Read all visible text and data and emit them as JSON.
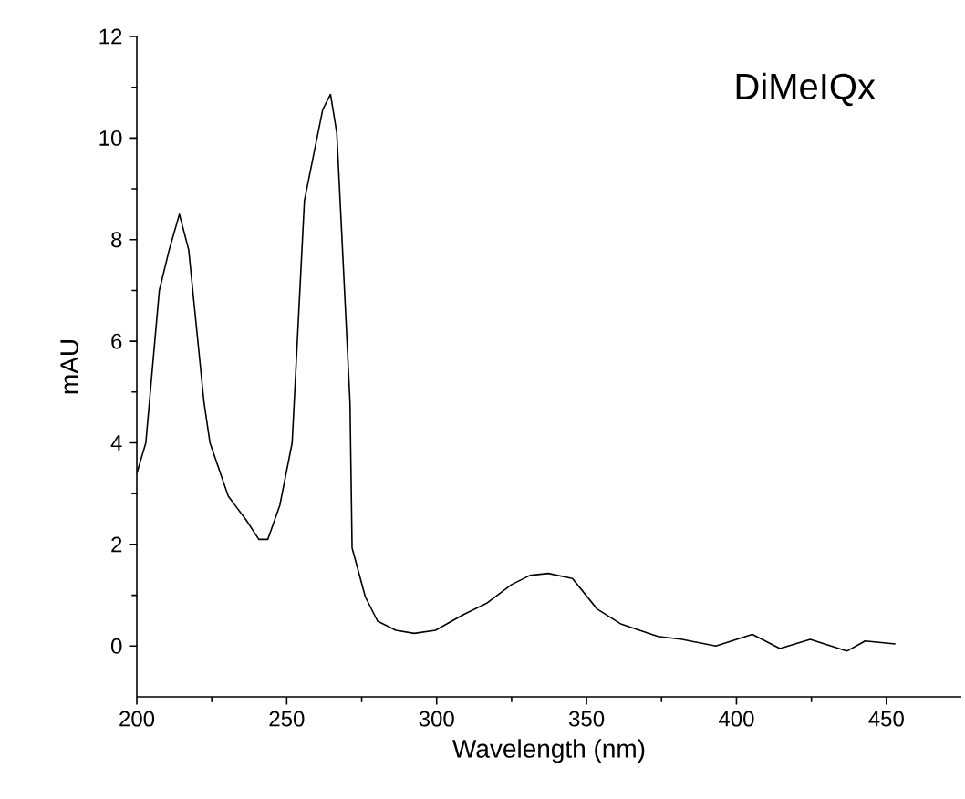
{
  "chart_data": {
    "type": "line",
    "xlabel": "Wavelength (nm)",
    "ylabel": "mAU",
    "annotations": [
      "DiMeIQx"
    ],
    "xlim": [
      200,
      475
    ],
    "xticks": [
      200,
      250,
      300,
      350,
      400,
      450
    ],
    "ylim": [
      -1,
      12
    ],
    "yticks": [
      0,
      2,
      4,
      6,
      8,
      10,
      12
    ],
    "grid": false,
    "marker": "none",
    "line_style": "solid",
    "series": [
      {
        "color": "#000000",
        "x": [
          200,
          203,
          207.5,
          210.8,
          214.2,
          217.3,
          222.4,
          224.4,
          230.5,
          236.6,
          240.7,
          243.7,
          247.7,
          251.8,
          255.9,
          262,
          264.6,
          266.7,
          271.1,
          271.8,
          276.2,
          280.3,
          286.4,
          292.5,
          299.6,
          308.7,
          316.9,
          325,
          331.1,
          337.2,
          345.3,
          353.5,
          361.6,
          373.8,
          381.9,
          393.1,
          405.3,
          414.5,
          424.6,
          436.8,
          442.9,
          453
        ],
        "values": [
          3.4,
          4.0,
          7.0,
          7.8,
          8.5,
          7.8,
          4.8,
          4.0,
          2.95,
          2.47,
          2.1,
          2.1,
          2.77,
          4.0,
          8.77,
          10.56,
          10.86,
          10.1,
          4.8,
          1.93,
          0.97,
          0.49,
          0.31,
          0.25,
          0.31,
          0.61,
          0.85,
          1.21,
          1.39,
          1.43,
          1.33,
          0.73,
          0.43,
          0.19,
          0.13,
          0.0,
          0.23,
          -0.05,
          0.13,
          -0.1,
          0.1,
          0.04
        ]
      }
    ]
  }
}
